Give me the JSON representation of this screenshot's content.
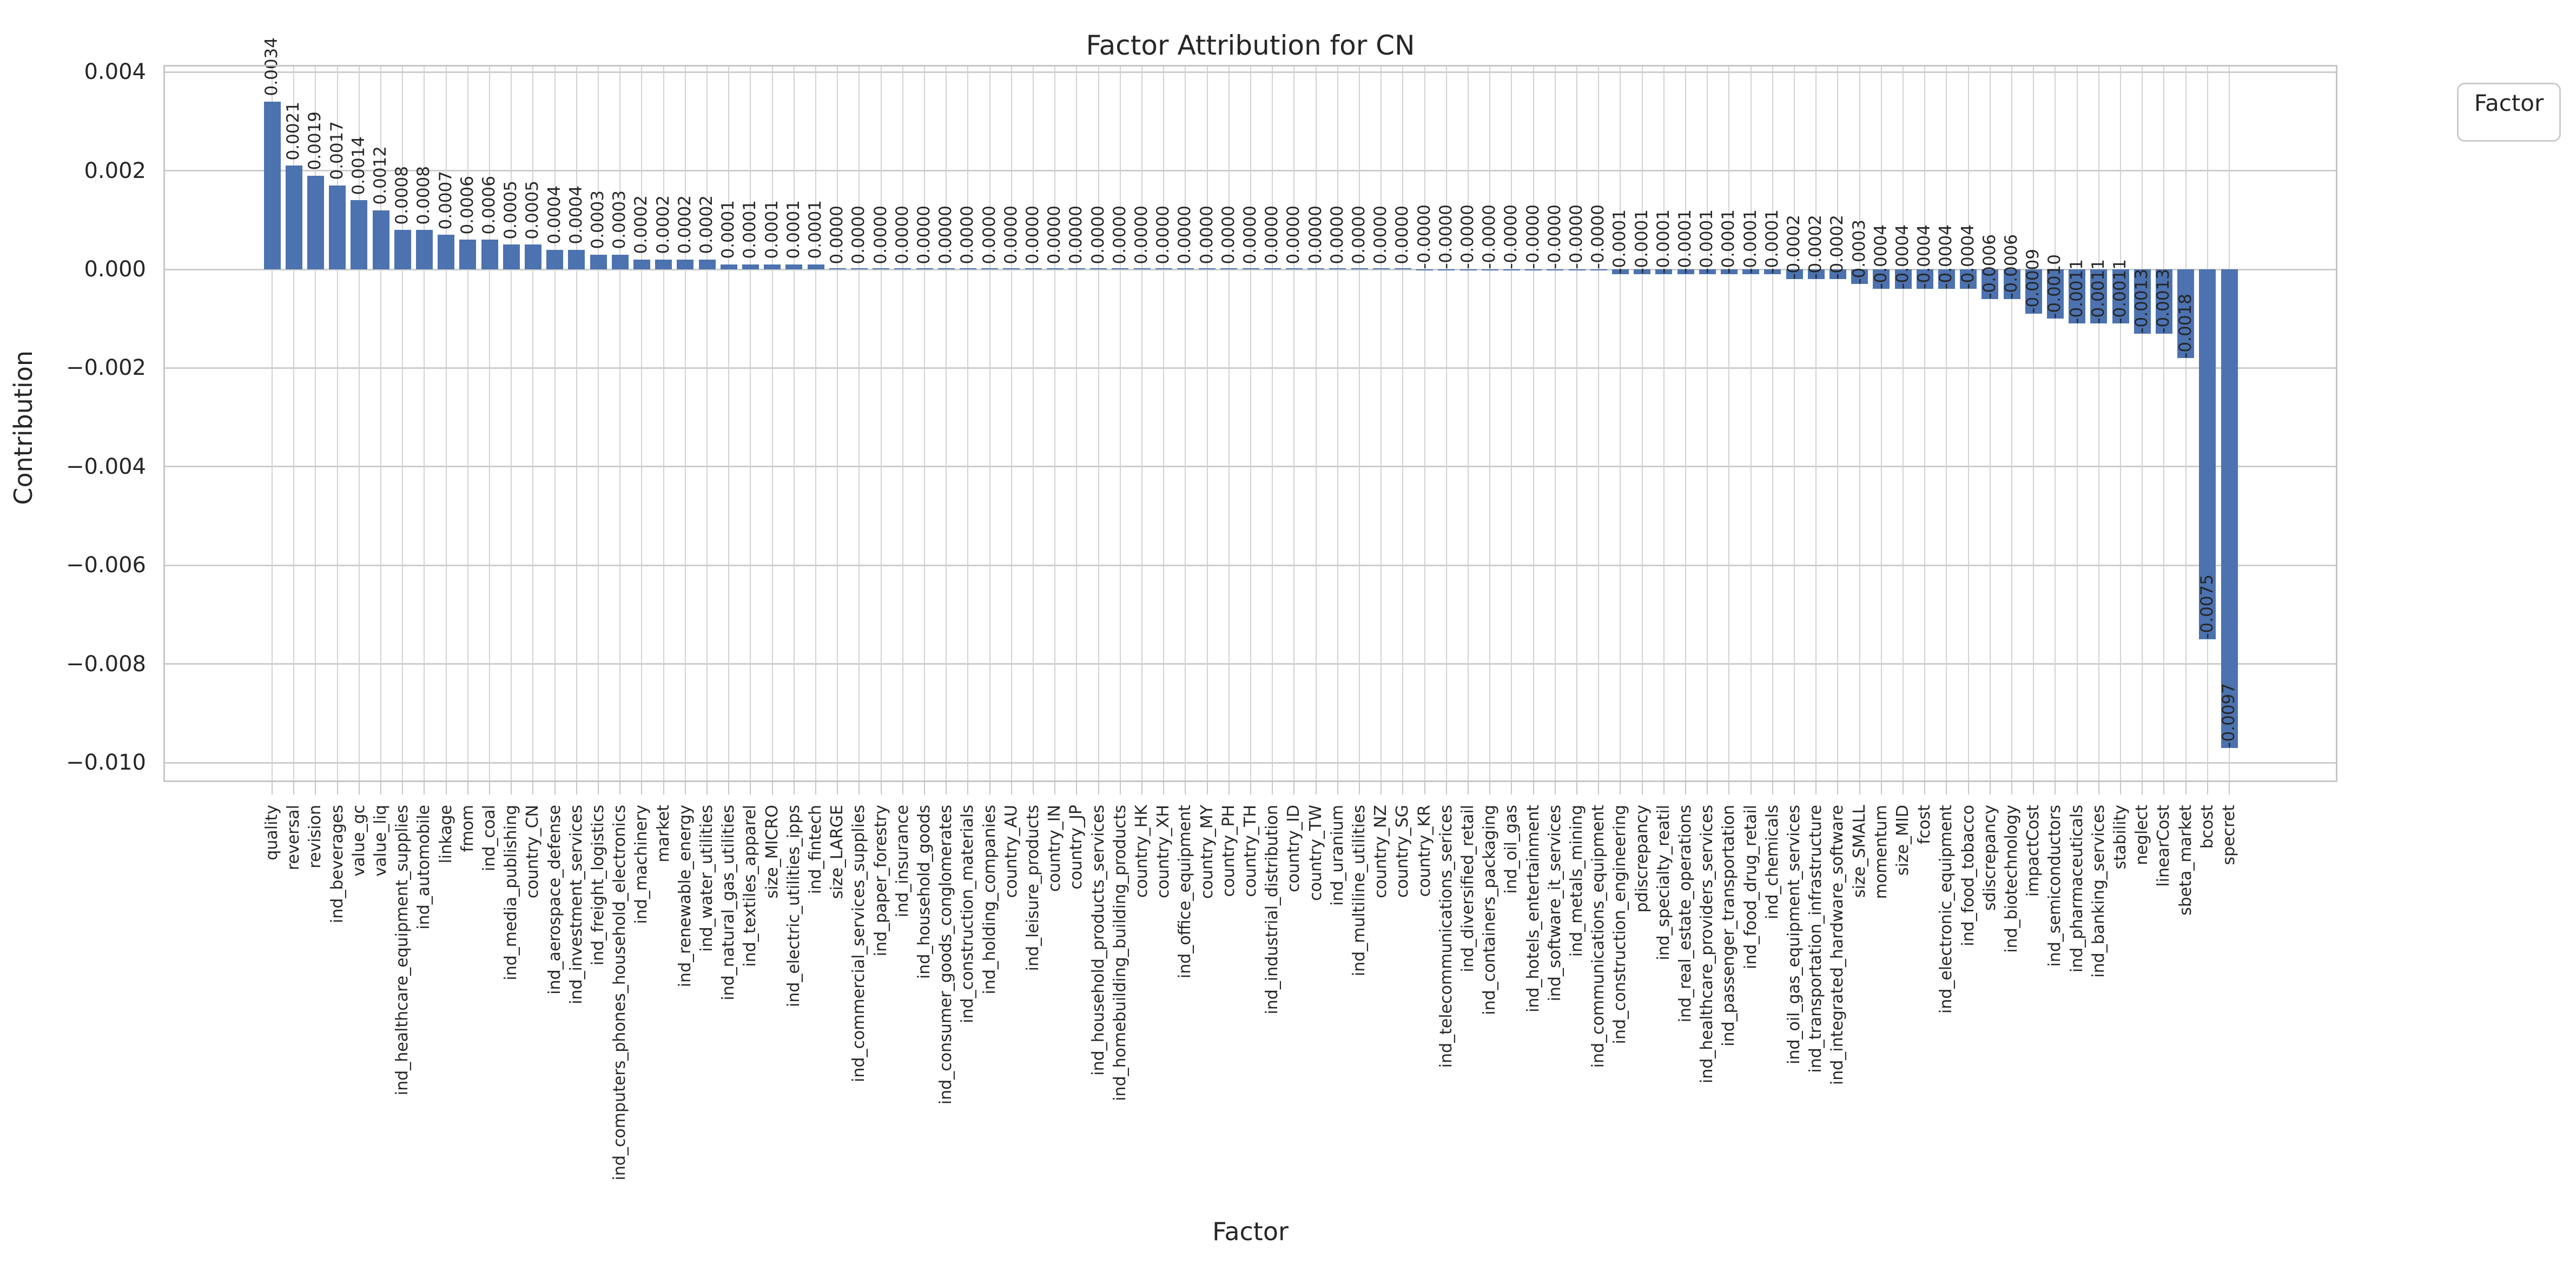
{
  "title": "Factor Attribution for CN",
  "x_axis_label": "Factor",
  "y_axis_label": "Contribution",
  "legend": {
    "title": "Factor"
  },
  "colors": {
    "bar": "#4C72B0",
    "grid": "#cdcdcd",
    "text": "#262626"
  },
  "y_ticks": [
    {
      "value": 0.004,
      "label": "0.004"
    },
    {
      "value": 0.002,
      "label": "0.002"
    },
    {
      "value": 0.0,
      "label": "0.000"
    },
    {
      "value": -0.002,
      "label": "−0.002"
    },
    {
      "value": -0.004,
      "label": "−0.004"
    },
    {
      "value": -0.006,
      "label": "−0.006"
    },
    {
      "value": -0.008,
      "label": "−0.008"
    },
    {
      "value": -0.01,
      "label": "−0.010"
    }
  ],
  "chart_data": {
    "type": "bar",
    "title": "Factor Attribution for CN",
    "xlabel": "Factor",
    "ylabel": "Contribution",
    "ylim": [
      -0.0104,
      0.0041
    ],
    "grid": true,
    "legend_position": "outside-top-right",
    "categories": [
      "quality",
      "reversal",
      "revision",
      "ind_beverages",
      "value_gc",
      "value_liq",
      "ind_healthcare_equipment_supplies",
      "ind_automobile",
      "linkage",
      "fmom",
      "ind_coal",
      "ind_media_publishing",
      "country_CN",
      "ind_aerospace_defense",
      "ind_investment_services",
      "ind_freight_logistics",
      "ind_computers_phones_household_electronics",
      "ind_machinery",
      "market",
      "ind_renewable_energy",
      "ind_water_utilities",
      "ind_natural_gas_utilities",
      "ind_textiles_apparel",
      "size_MICRO",
      "ind_electric_utilities_ipps",
      "ind_fintech",
      "size_LARGE",
      "ind_commercial_services_supplies",
      "ind_paper_forestry",
      "ind_insurance",
      "ind_household_goods",
      "ind_consumer_goods_conglomerates",
      "ind_construction_materials",
      "ind_holding_companies",
      "country_AU",
      "ind_leisure_products",
      "country_IN",
      "country_JP",
      "ind_household_products_services",
      "ind_homebuilding_building_products",
      "country_HK",
      "country_XH",
      "ind_office_equipment",
      "country_MY",
      "country_PH",
      "country_TH",
      "ind_industrial_distribution",
      "country_ID",
      "country_TW",
      "ind_uranium",
      "ind_multiline_utilities",
      "country_NZ",
      "country_SG",
      "country_KR",
      "ind_telecommunications_serices",
      "ind_diversified_retail",
      "ind_containers_packaging",
      "ind_oil_gas",
      "ind_hotels_entertainment",
      "ind_software_it_services",
      "ind_metals_mining",
      "ind_communications_equipment",
      "ind_construction_engineering",
      "pdiscrepancy",
      "ind_specialty_reatil",
      "ind_real_estate_operations",
      "ind_healthcare_providers_services",
      "ind_passenger_transportation",
      "ind_food_drug_retail",
      "ind_chemicals",
      "ind_oil_gas_equipment_services",
      "ind_transportation_infrastructure",
      "ind_integrated_hardware_software",
      "size_SMALL",
      "momentum",
      "size_MID",
      "fcost",
      "ind_electronic_equipment",
      "ind_food_tobacco",
      "sdiscrepancy",
      "ind_biotechnology",
      "impactCost",
      "ind_semiconductors",
      "ind_pharmaceuticals",
      "ind_banking_services",
      "stability",
      "neglect",
      "linearCost",
      "sbeta_market",
      "bcost",
      "specret"
    ],
    "values": [
      0.0034,
      0.0021,
      0.0019,
      0.0017,
      0.0014,
      0.0012,
      0.0008,
      0.0008,
      0.0007,
      0.0006,
      0.0006,
      0.0005,
      0.0005,
      0.0004,
      0.0004,
      0.0003,
      0.0003,
      0.0002,
      0.0002,
      0.0002,
      0.0002,
      0.0001,
      0.0001,
      0.0001,
      0.0001,
      0.0001,
      0.0,
      0.0,
      0.0,
      0.0,
      0.0,
      0.0,
      0.0,
      0.0,
      0.0,
      0.0,
      0.0,
      0.0,
      0.0,
      0.0,
      0.0,
      0.0,
      0.0,
      0.0,
      0.0,
      0.0,
      0.0,
      0.0,
      0.0,
      0.0,
      0.0,
      0.0,
      0.0,
      0.0,
      0.0,
      0.0,
      0.0,
      0.0,
      0.0,
      0.0,
      0.0,
      0.0,
      -0.0001,
      -0.0001,
      -0.0001,
      -0.0001,
      -0.0001,
      -0.0001,
      -0.0001,
      -0.0001,
      -0.0002,
      -0.0002,
      -0.0002,
      -0.0003,
      -0.0004,
      -0.0004,
      -0.0004,
      -0.0004,
      -0.0004,
      -0.0006,
      -0.0006,
      -0.0009,
      -0.001,
      -0.0011,
      -0.0011,
      -0.0011,
      -0.0013,
      -0.0013,
      -0.0018,
      -0.0075,
      -0.0097
    ],
    "value_labels": [
      "0.0034",
      "0.0021",
      "0.0019",
      "0.0017",
      "0.0014",
      "0.0012",
      "0.0008",
      "0.0008",
      "0.0007",
      "0.0006",
      "0.0006",
      "0.0005",
      "0.0005",
      "0.0004",
      "0.0004",
      "0.0003",
      "0.0003",
      "0.0002",
      "0.0002",
      "0.0002",
      "0.0002",
      "0.0001",
      "0.0001",
      "0.0001",
      "0.0001",
      "0.0001",
      "0.0000",
      "0.0000",
      "0.0000",
      "0.0000",
      "0.0000",
      "0.0000",
      "0.0000",
      "0.0000",
      "0.0000",
      "0.0000",
      "0.0000",
      "0.0000",
      "0.0000",
      "0.0000",
      "0.0000",
      "0.0000",
      "0.0000",
      "0.0000",
      "0.0000",
      "0.0000",
      "0.0000",
      "0.0000",
      "0.0000",
      "0.0000",
      "0.0000",
      "0.0000",
      "0.0000",
      "-0.0000",
      "-0.0000",
      "-0.0000",
      "-0.0000",
      "-0.0000",
      "-0.0000",
      "-0.0000",
      "-0.0000",
      "-0.0000",
      "-0.0001",
      "-0.0001",
      "-0.0001",
      "-0.0001",
      "-0.0001",
      "-0.0001",
      "-0.0001",
      "-0.0001",
      "-0.0002",
      "-0.0002",
      "-0.0002",
      "-0.0003",
      "-0.0004",
      "-0.0004",
      "-0.0004",
      "-0.0004",
      "-0.0004",
      "-0.0006",
      "-0.0006",
      "-0.0009",
      "-0.0010",
      "-0.0011",
      "-0.0011",
      "-0.0011",
      "-0.0013",
      "-0.0013",
      "-0.0018",
      "-0.0075",
      "-0.0097"
    ]
  }
}
